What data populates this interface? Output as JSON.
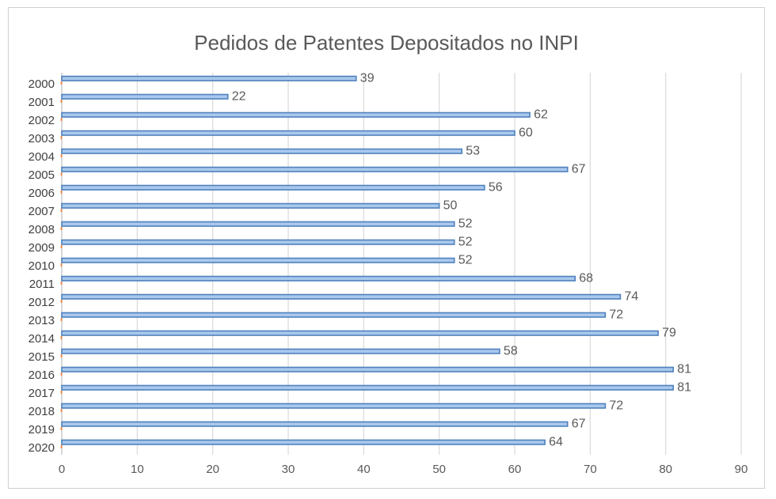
{
  "chart_data": {
    "type": "bar",
    "orientation": "horizontal",
    "title": "Pedidos de Patentes Depositados no INPI",
    "xlabel": "",
    "ylabel": "",
    "categories": [
      "2000",
      "2001",
      "2002",
      "2003",
      "2004",
      "2005",
      "2006",
      "2007",
      "2008",
      "2009",
      "2010",
      "2011",
      "2012",
      "2013",
      "2014",
      "2015",
      "2016",
      "2017",
      "2018",
      "2019",
      "2020"
    ],
    "values": [
      39,
      22,
      62,
      60,
      53,
      67,
      56,
      50,
      52,
      52,
      52,
      68,
      74,
      72,
      79,
      58,
      81,
      81,
      72,
      67,
      64
    ],
    "xlim": [
      0,
      90
    ],
    "xticks": [
      "0",
      "10",
      "20",
      "30",
      "40",
      "50",
      "60",
      "70",
      "80",
      "90"
    ],
    "grid": true,
    "legend": "none",
    "colors": {
      "bar_fill": "#a9c8ec",
      "bar_stroke": "#4f81bd",
      "secondary_tick": "#ed7d31",
      "grid": "#d9d9d9",
      "axis": "#bfbfbf"
    }
  }
}
